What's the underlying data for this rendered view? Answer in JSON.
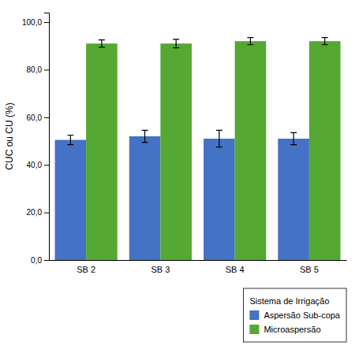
{
  "chart_data": {
    "type": "bar",
    "categories": [
      "SB 2",
      "SB 3",
      "SB 4",
      "SB 5"
    ],
    "series": [
      {
        "name": "Aspersão Sub-copa",
        "color": "#4472C4",
        "values": [
          50.5,
          52.0,
          51.0,
          51.0
        ],
        "errors": [
          2.0,
          2.5,
          3.5,
          2.5
        ]
      },
      {
        "name": "Microaspersão",
        "color": "#55A832",
        "values": [
          91.0,
          91.0,
          92.0,
          92.0
        ],
        "errors": [
          1.5,
          1.8,
          1.5,
          1.5
        ]
      }
    ],
    "ylabel": "CUC ou CU (%)",
    "ylim": [
      0,
      104
    ],
    "yticks": [
      {
        "value": 0.0,
        "label": "0,0"
      },
      {
        "value": 20.0,
        "label": "20,0"
      },
      {
        "value": 40.0,
        "label": "40,0"
      },
      {
        "value": 60.0,
        "label": "60,0"
      },
      {
        "value": 80.0,
        "label": "80,0"
      },
      {
        "value": 100.0,
        "label": "100,0"
      }
    ],
    "legend_title": "Sistema de Irrigação",
    "legend": "lower right",
    "grid": false
  }
}
